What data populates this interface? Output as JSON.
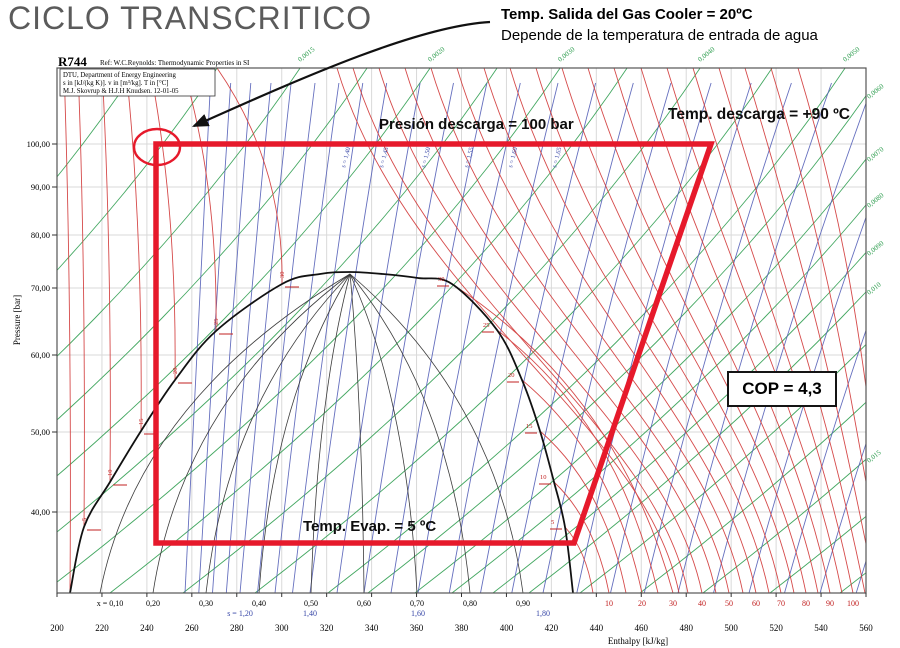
{
  "title": "CICLO TRANSCRITICO",
  "annotation": {
    "line1": "Temp. Salida del Gas Cooler = 20ºC",
    "line2": "Depende de la temperatura de entrada de agua"
  },
  "cycle_labels": {
    "discharge_pressure": "Presión descarga = 100 bar",
    "discharge_temp": "Temp.  descarga = +90 ºC",
    "evap_temp": "Temp. Evap. = 5 ºC",
    "cop": "COP = 4,3"
  },
  "chart_data": {
    "type": "line",
    "diagram": "log P-h (pressure-enthalpy) diagram for CO2 with transcritical cycle overlay",
    "title": "R744",
    "subtitle": "Ref: W.C.Reynolds: Thermodynamic Properties in SI",
    "info_box": [
      "DTU, Department of Energy Engineering",
      "s in [kJ/(kg K)]. v in [m³/kg]. T in [°C]",
      "M.J. Skovrup & H.J.H Knudsen. 12-01-05"
    ],
    "xlabel": "Enthalpy [kJ/kg]",
    "ylabel": "Pressure [bar]",
    "x_axis": {
      "min": 200,
      "max": 560,
      "tick_step": 20,
      "tick_labels": [
        "200",
        "220",
        "240",
        "260",
        "280",
        "300",
        "320",
        "340",
        "360",
        "380",
        "400",
        "420",
        "440",
        "460",
        "480",
        "500",
        "520",
        "540",
        "560"
      ]
    },
    "y_axis": {
      "scale": "log",
      "tick_values": [
        100,
        90,
        80,
        70,
        60,
        50,
        40
      ],
      "tick_labels": [
        "100,00",
        "90,00",
        "80,00",
        "70,00",
        "60,00",
        "50,00",
        "40,00"
      ]
    },
    "quality_labels": [
      "x = 0,10",
      "0,20",
      "0,30",
      "0,40",
      "0,50",
      "0,60",
      "0,70",
      "0,80",
      "0,90"
    ],
    "entropy_bottom_labels": [
      "s = 1,20",
      "1,40",
      "1,60",
      "1,80"
    ],
    "entropy_bottom_values": [
      1.2,
      1.4,
      1.6,
      1.8
    ],
    "entropy_inline_labels": [
      "s = 1,40",
      "s = 1,45",
      "s = 1,50",
      "s = 1,55",
      "s = 1,60",
      "s = 1,65"
    ],
    "isotherm_bottom_labels": [
      "10",
      "20",
      "30",
      "40",
      "50",
      "60",
      "70",
      "80",
      "90",
      "100"
    ],
    "saturation_temp_labels": [
      "5",
      "10",
      "15",
      "20",
      "25",
      "30"
    ],
    "isochore_labels_right": [
      "0,0060",
      "0,0070",
      "0,0080",
      "0,0090",
      "0,010",
      "0,015"
    ],
    "isochore_labels_top": [
      "0,0015",
      "0,0020",
      "0,0030",
      "0,0040",
      "0,0050"
    ],
    "cycle": {
      "color": "#e6192b",
      "discharge_pressure_bar": 100,
      "evap_pressure_bar": 37,
      "evap_temp_c": 5,
      "discharge_temp_c": 90,
      "gas_cooler_outlet_temp_c": 20,
      "cop": 4.3,
      "vertices": [
        {
          "name": "gas-cooler-outlet",
          "h_kj_kg": 244,
          "p_bar": 100
        },
        {
          "name": "compressor-discharge",
          "h_kj_kg": 491,
          "p_bar": 100
        },
        {
          "name": "compressor-suction",
          "h_kj_kg": 430,
          "p_bar": 37
        },
        {
          "name": "evaporator-inlet",
          "h_kj_kg": 244,
          "p_bar": 37
        }
      ]
    }
  }
}
